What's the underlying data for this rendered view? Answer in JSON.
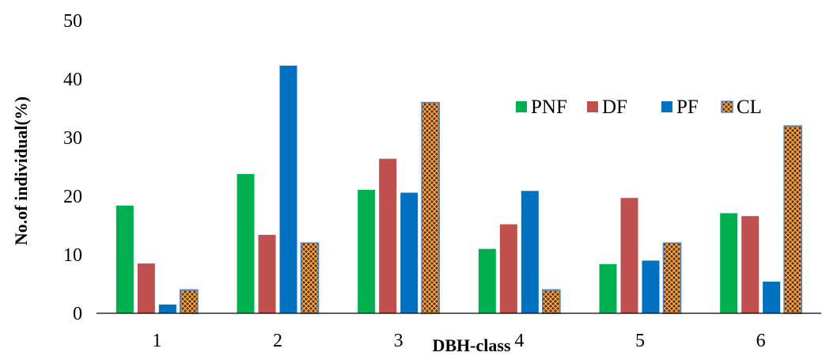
{
  "chart_data": {
    "type": "bar",
    "title": "",
    "xlabel": "DBH-class",
    "ylabel": "No.of individual(%)",
    "categories": [
      "1",
      "2",
      "3",
      "4",
      "5",
      "6"
    ],
    "ylim": [
      0,
      50
    ],
    "yticks": [
      "0",
      "10",
      "20",
      "30",
      "40",
      "50"
    ],
    "grid": false,
    "legend_position": "top-right",
    "series": [
      {
        "name": "PNF",
        "color": "#00b050",
        "pattern": "solid",
        "values": [
          18.4,
          23.8,
          21.1,
          11.0,
          8.4,
          17.1
        ]
      },
      {
        "name": "DF",
        "color": "#c0504d",
        "pattern": "solid",
        "values": [
          8.5,
          13.4,
          26.4,
          15.2,
          19.7,
          16.6
        ]
      },
      {
        "name": "PF",
        "color": "#0070c0",
        "pattern": "solid",
        "values": [
          1.5,
          42.3,
          20.6,
          20.9,
          9.0,
          5.4
        ]
      },
      {
        "name": "CL",
        "color": "#8b1a1a",
        "pattern": "crosshatch",
        "pattern_color": "#d4c84a",
        "border_color": "#4f81bd",
        "values": [
          4.0,
          12.0,
          36.0,
          4.0,
          12.0,
          32.0
        ]
      }
    ]
  }
}
